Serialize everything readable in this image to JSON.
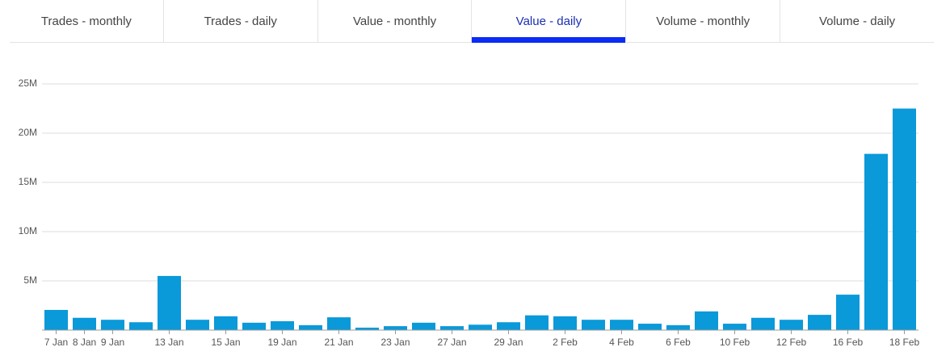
{
  "tabs": {
    "labels": [
      "Trades - monthly",
      "Trades - daily",
      "Value - monthly",
      "Value - daily",
      "Volume - monthly",
      "Volume - daily"
    ],
    "active": 3
  },
  "chart_data": {
    "type": "bar",
    "color": "#0a99d9",
    "grid": true,
    "categories": [
      "7 Jan",
      "8 Jan",
      "9 Jan",
      null,
      "13 Jan",
      null,
      "15 Jan",
      null,
      "19 Jan",
      null,
      "21 Jan",
      null,
      "23 Jan",
      null,
      "27 Jan",
      null,
      "29 Jan",
      null,
      "2 Feb",
      null,
      "4 Feb",
      null,
      "6 Feb",
      null,
      "10 Feb",
      null,
      "12 Feb",
      null,
      "16 Feb",
      null,
      "18 Feb"
    ],
    "values": [
      2050000,
      1250000,
      1050000,
      800000,
      5500000,
      1050000,
      1400000,
      750000,
      900000,
      500000,
      1300000,
      250000,
      400000,
      750000,
      400000,
      550000,
      800000,
      1500000,
      1400000,
      1050000,
      1050000,
      650000,
      500000,
      1900000,
      650000,
      1250000,
      1050000,
      1550000,
      3600000,
      17900000,
      22500000
    ],
    "ylim": [
      0,
      25000000
    ],
    "yticks": [
      {
        "value": 5000000,
        "label": "5M"
      },
      {
        "value": 10000000,
        "label": "10M"
      },
      {
        "value": 15000000,
        "label": "15M"
      },
      {
        "value": 20000000,
        "label": "20M"
      },
      {
        "value": 25000000,
        "label": "25M"
      }
    ]
  }
}
